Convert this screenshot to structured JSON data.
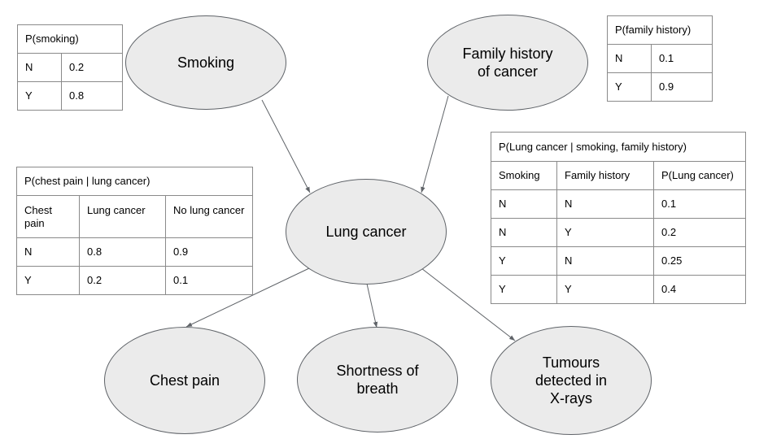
{
  "nodes": {
    "smoking": {
      "lines": [
        "Smoking"
      ]
    },
    "family_history": {
      "lines": [
        "Family history",
        "of cancer"
      ]
    },
    "lung_cancer": {
      "lines": [
        "Lung cancer"
      ]
    },
    "chest_pain": {
      "lines": [
        "Chest pain"
      ]
    },
    "shortness_of_breath": {
      "lines": [
        "Shortness of",
        "breath"
      ]
    },
    "tumours": {
      "lines": [
        "Tumours",
        "detected in",
        "X-rays"
      ]
    }
  },
  "edges": [
    {
      "from": "smoking",
      "to": "lung_cancer"
    },
    {
      "from": "family_history",
      "to": "lung_cancer"
    },
    {
      "from": "lung_cancer",
      "to": "chest_pain"
    },
    {
      "from": "lung_cancer",
      "to": "shortness_of_breath"
    },
    {
      "from": "lung_cancer",
      "to": "tumours"
    }
  ],
  "tables": {
    "p_smoking": {
      "title": "P(smoking)",
      "rows": [
        [
          "N",
          "0.2"
        ],
        [
          "Y",
          "0.8"
        ]
      ]
    },
    "p_family": {
      "title": "P(family history)",
      "rows": [
        [
          "N",
          "0.1"
        ],
        [
          "Y",
          "0.9"
        ]
      ]
    },
    "p_lung": {
      "title": "P(Lung cancer | smoking, family history)",
      "headers": [
        "Smoking",
        "Family history",
        "P(Lung cancer)"
      ],
      "rows": [
        [
          "N",
          "N",
          "0.1"
        ],
        [
          "N",
          "Y",
          "0.2"
        ],
        [
          "Y",
          "N",
          "0.25"
        ],
        [
          "Y",
          "Y",
          "0.4"
        ]
      ]
    },
    "p_chest": {
      "title": "P(chest pain | lung cancer)",
      "headers": [
        "Chest pain",
        "Lung cancer",
        "No lung cancer"
      ],
      "rows": [
        [
          "N",
          "0.8",
          "0.9"
        ],
        [
          "Y",
          "0.2",
          "0.1"
        ]
      ]
    }
  },
  "colors": {
    "node_fill": "#ebebeb",
    "node_border": "#5f6368",
    "edge": "#5f6368",
    "table_border": "#8a8a8a"
  }
}
